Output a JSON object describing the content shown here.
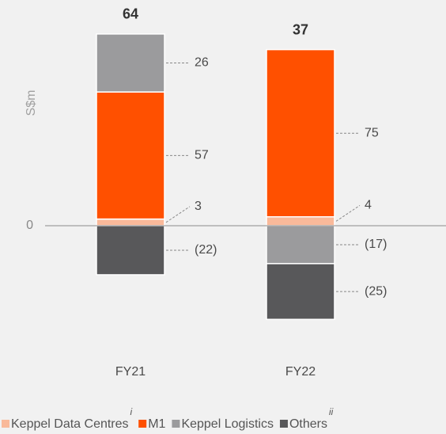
{
  "chart_data": {
    "type": "stacked_bar",
    "y_label": "S$m",
    "categories": [
      "FY21",
      "FY22"
    ],
    "totals": [
      64,
      37
    ],
    "series": [
      {
        "name": "Keppel Data Centres",
        "note": "i",
        "color": "#f9b99a",
        "values": [
          3,
          4
        ]
      },
      {
        "name": "M1",
        "color": "#ff5000",
        "values": [
          57,
          75
        ]
      },
      {
        "name": "Keppel Logistics",
        "color": "#9b9b9d",
        "values": [
          26,
          -17
        ],
        "value_labels": [
          "26",
          "(17)"
        ]
      },
      {
        "name": "Others",
        "note": "ii",
        "color": "#58585a",
        "values": [
          -22,
          -25
        ],
        "value_labels": [
          "(22)",
          "(25)"
        ]
      }
    ],
    "ylim": [
      -45,
      100
    ],
    "yticks": [
      0
    ]
  }
}
